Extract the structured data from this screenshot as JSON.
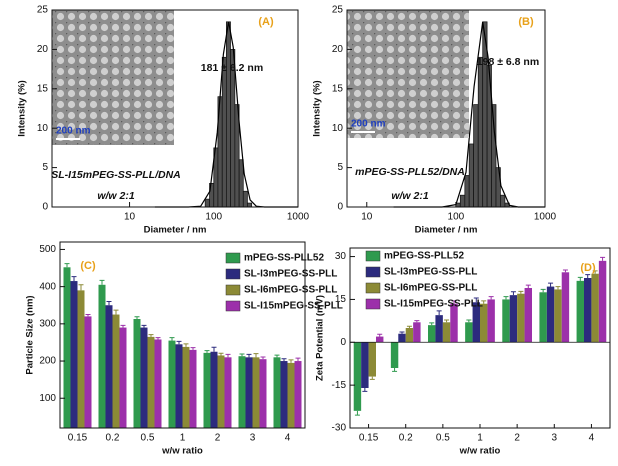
{
  "chart_data": [
    {
      "type": "histogram",
      "panel_label": "(A)",
      "annotations": [
        "181 ± 6.2 nm",
        "SL-I15mPEG-SS-PLL/DNA",
        "w/w 2:1"
      ],
      "inset_scale": "200 nm",
      "xlabel": "Diameter / nm",
      "ylabel": "Intensity (%)",
      "log_x": true,
      "bins": [
        79,
        89,
        100,
        112,
        126,
        141,
        158,
        178,
        200,
        224,
        251,
        282
      ],
      "counts": [
        1,
        3,
        7.5,
        14,
        19,
        23.5,
        20,
        13,
        6,
        2,
        0.5
      ],
      "color": "#505050",
      "fit": {
        "x": [
          20,
          50,
          70,
          90,
          110,
          130,
          150,
          170,
          200,
          230,
          270,
          320,
          400,
          1000
        ],
        "values": [
          0,
          0,
          0.1,
          2,
          9.5,
          19.4,
          23.5,
          20.3,
          10.8,
          4.2,
          0.9,
          0.1,
          0,
          0
        ],
        "color": "#000000"
      },
      "xlim": [
        1.2,
        1000
      ],
      "xticks": [
        10,
        100,
        1000
      ],
      "ylim": [
        0,
        25
      ],
      "yticks": [
        0,
        5,
        10,
        15,
        20,
        25
      ]
    },
    {
      "type": "histogram",
      "panel_label": "(B)",
      "annotations": [
        "198 ± 6.8 nm",
        "mPEG-SS-PLL52/DNA",
        "w/w 2:1"
      ],
      "inset_scale": "200 nm",
      "xlabel": "Diameter / nm",
      "ylabel": "Intensity (%)",
      "log_x": true,
      "bins": [
        100,
        112,
        126,
        141,
        158,
        178,
        200,
        224,
        251,
        282,
        316,
        355,
        398
      ],
      "counts": [
        0.5,
        1.5,
        4,
        8,
        13,
        19,
        23.5,
        18,
        13,
        5,
        1.5,
        0.5
      ],
      "color": "#505050",
      "fit": {
        "x": [
          20,
          70,
          100,
          130,
          160,
          200,
          230,
          270,
          320,
          400,
          500,
          1000
        ],
        "values": [
          0,
          0,
          0.3,
          4.4,
          15.3,
          23.5,
          19,
          9.6,
          2.7,
          0.2,
          0,
          0
        ],
        "color": "#000000"
      },
      "xlim": [
        6,
        1000
      ],
      "xticks": [
        10,
        100,
        1000
      ],
      "ylim": [
        0,
        25
      ],
      "yticks": [
        0,
        5,
        10,
        15,
        20,
        25
      ]
    },
    {
      "type": "bar",
      "panel_label": "(C)",
      "xlabel": "w/w ratio",
      "ylabel": "Particle Size (nm)",
      "categories": [
        "0.15",
        "0.2",
        "0.5",
        "1",
        "2",
        "3",
        "4"
      ],
      "series": [
        {
          "name": "mPEG-SS-PLL52",
          "color": "#2f9a4e",
          "values": [
            452,
            405,
            313,
            255,
            222,
            213,
            210
          ],
          "errors": [
            10,
            12,
            6,
            8,
            6,
            6,
            6
          ]
        },
        {
          "name": "SL-I3mPEG-SS-PLL",
          "color": "#2c2b7e",
          "values": [
            415,
            350,
            290,
            245,
            225,
            210,
            200
          ],
          "errors": [
            12,
            10,
            6,
            8,
            12,
            8,
            6
          ]
        },
        {
          "name": "SL-I6mPEG-SS-PLL",
          "color": "#8c8a36",
          "values": [
            390,
            325,
            265,
            238,
            215,
            210,
            195
          ],
          "errors": [
            15,
            12,
            6,
            8,
            6,
            10,
            8
          ]
        },
        {
          "name": "SL-I15mPEG-SS-PLL",
          "color": "#9c30aa",
          "values": [
            320,
            290,
            258,
            230,
            210,
            205,
            200
          ],
          "errors": [
            5,
            6,
            5,
            6,
            8,
            6,
            8
          ]
        }
      ],
      "ylim": [
        20,
        520
      ],
      "yticks": [
        100,
        200,
        300,
        400,
        500
      ]
    },
    {
      "type": "bar",
      "panel_label": "(D)",
      "xlabel": "w/w ratio",
      "ylabel": "Zeta Potential (mV)",
      "categories": [
        "0.15",
        "0.2",
        "0.5",
        "1",
        "2",
        "3",
        "4"
      ],
      "series": [
        {
          "name": "mPEG-SS-PLL52",
          "color": "#2f9a4e",
          "values": [
            -24,
            -9,
            6,
            7,
            15,
            17.5,
            21.5
          ],
          "errors": [
            1.5,
            1.2,
            0.8,
            0.8,
            1,
            1,
            1.2
          ]
        },
        {
          "name": "SL-I3mPEG-SS-PLL",
          "color": "#2c2b7e",
          "values": [
            -16,
            3,
            9.5,
            14,
            16.5,
            19.5,
            22.5
          ],
          "errors": [
            1.2,
            0.6,
            1.5,
            1.5,
            1.2,
            1.2,
            1.2
          ]
        },
        {
          "name": "SL-I6mPEG-SS-PLL",
          "color": "#8c8a36",
          "values": [
            -12,
            5,
            7,
            13.5,
            17,
            18.5,
            24
          ],
          "errors": [
            1,
            0.6,
            0.8,
            1,
            0.8,
            1,
            1
          ]
        },
        {
          "name": "SL-I15mPEG-SS-PLL",
          "color": "#9c30aa",
          "values": [
            2,
            7,
            13.5,
            15,
            19,
            24.5,
            28.5
          ],
          "errors": [
            0.8,
            0.6,
            1,
            1,
            1,
            0.8,
            1.2
          ]
        }
      ],
      "ylim": [
        -30,
        33
      ],
      "yticks": [
        -30,
        -15,
        0,
        15,
        30
      ]
    }
  ]
}
